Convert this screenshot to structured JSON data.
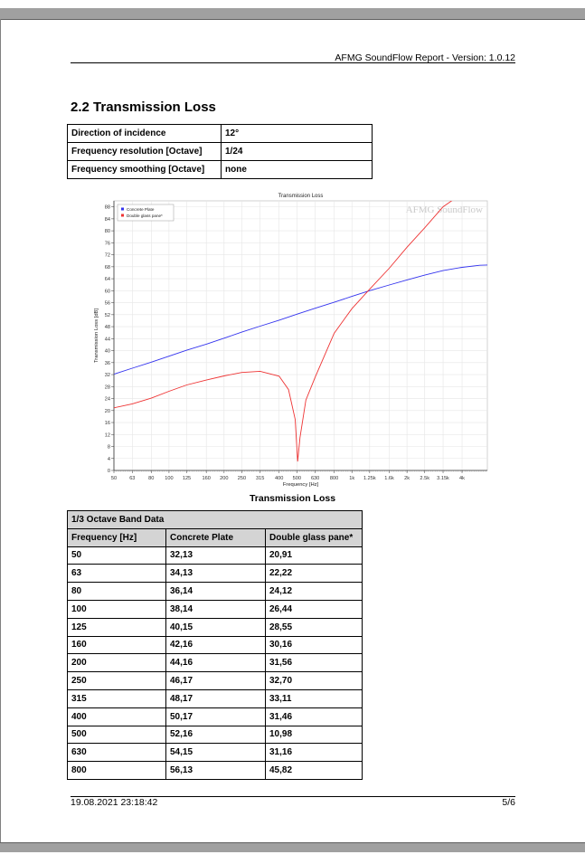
{
  "header": {
    "text": "AFMG SoundFlow Report - Version: 1.0.12"
  },
  "section": {
    "title": "2.2 Transmission Loss"
  },
  "params": [
    {
      "label": "Direction of incidence",
      "value": "12°"
    },
    {
      "label": "Frequency resolution [Octave]",
      "value": "1/24"
    },
    {
      "label": "Frequency smoothing [Octave]",
      "value": "none"
    }
  ],
  "chart_data": {
    "type": "line",
    "title": "Transmission Loss",
    "xlabel": "Frequency [Hz]",
    "ylabel": "Transmission Loss [dB]",
    "watermark": "AFMG SoundFlow",
    "x_scale": "log",
    "xlim": [
      50,
      5500
    ],
    "ylim": [
      0,
      90
    ],
    "grid": true,
    "legend_position": "top-left",
    "x_ticks": [
      "50",
      "63",
      "80",
      "100",
      "125",
      "160",
      "200",
      "250",
      "315",
      "400",
      "500",
      "630",
      "800",
      "1k",
      "1.25k",
      "1.6k",
      "2k",
      "2.5k",
      "3.15k",
      "4k"
    ],
    "x_tick_values": [
      50,
      63,
      80,
      100,
      125,
      160,
      200,
      250,
      315,
      400,
      500,
      630,
      800,
      1000,
      1250,
      1600,
      2000,
      2500,
      3150,
      4000
    ],
    "y_ticks": [
      0,
      4,
      8,
      12,
      16,
      20,
      24,
      28,
      32,
      36,
      40,
      44,
      48,
      52,
      56,
      60,
      64,
      68,
      72,
      76,
      80,
      84,
      88
    ],
    "series": [
      {
        "name": "Concrete Plate",
        "color": "#3333ee",
        "x": [
          50,
          63,
          80,
          100,
          125,
          160,
          200,
          250,
          315,
          400,
          500,
          630,
          800,
          1000,
          1250,
          1600,
          2000,
          2500,
          3150,
          4000,
          5000,
          5500
        ],
        "y": [
          32.13,
          34.13,
          36.14,
          38.14,
          40.15,
          42.16,
          44.16,
          46.17,
          48.17,
          50.17,
          52.16,
          54.15,
          56.13,
          58.1,
          60.0,
          61.9,
          63.6,
          65.2,
          66.7,
          67.8,
          68.5,
          68.6
        ]
      },
      {
        "name": "Double glass pane*",
        "color": "#ee3333",
        "x": [
          50,
          63,
          80,
          100,
          125,
          160,
          200,
          250,
          315,
          400,
          450,
          490,
          505,
          520,
          560,
          630,
          800,
          1000,
          1250,
          1600,
          2000,
          2500,
          3150,
          3700
        ],
        "y": [
          20.91,
          22.22,
          24.12,
          26.44,
          28.55,
          30.16,
          31.56,
          32.7,
          33.11,
          31.46,
          27.0,
          17.0,
          3.0,
          10.98,
          23.5,
          31.16,
          45.82,
          54.0,
          60.5,
          67.5,
          74.5,
          81.0,
          88.0,
          91.0
        ]
      }
    ]
  },
  "chart_caption": "Transmission Loss",
  "band_table": {
    "title": "1/3 Octave Band Data",
    "headers": [
      "Frequency [Hz]",
      "Concrete Plate",
      "Double glass pane*"
    ],
    "rows": [
      [
        "50",
        "32,13",
        "20,91"
      ],
      [
        "63",
        "34,13",
        "22,22"
      ],
      [
        "80",
        "36,14",
        "24,12"
      ],
      [
        "100",
        "38,14",
        "26,44"
      ],
      [
        "125",
        "40,15",
        "28,55"
      ],
      [
        "160",
        "42,16",
        "30,16"
      ],
      [
        "200",
        "44,16",
        "31,56"
      ],
      [
        "250",
        "46,17",
        "32,70"
      ],
      [
        "315",
        "48,17",
        "33,11"
      ],
      [
        "400",
        "50,17",
        "31,46"
      ],
      [
        "500",
        "52,16",
        "10,98"
      ],
      [
        "630",
        "54,15",
        "31,16"
      ],
      [
        "800",
        "56,13",
        "45,82"
      ]
    ]
  },
  "footer": {
    "date": "19.08.2021 23:18:42",
    "page": "5/6"
  }
}
